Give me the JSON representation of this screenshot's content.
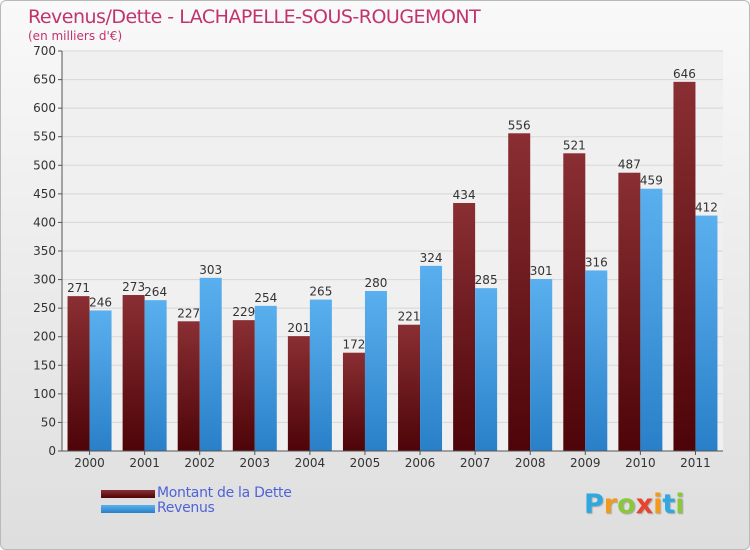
{
  "chart_data": {
    "type": "bar",
    "title": "Revenus/Dette - LACHAPELLE-SOUS-ROUGEMONT",
    "subtitle": "(en milliers d'€)",
    "categories": [
      "2000",
      "2001",
      "2002",
      "2003",
      "2004",
      "2005",
      "2006",
      "2007",
      "2008",
      "2009",
      "2010",
      "2011"
    ],
    "series": [
      {
        "name": "Montant de la Dette",
        "color": "#7a1a1f",
        "values": [
          271,
          273,
          227,
          229,
          201,
          172,
          221,
          434,
          556,
          521,
          487,
          646
        ]
      },
      {
        "name": "Revenus",
        "color": "#4aa3e6",
        "values": [
          246,
          264,
          303,
          254,
          265,
          280,
          324,
          285,
          301,
          316,
          459,
          412
        ]
      }
    ],
    "yticks": [
      0,
      50,
      100,
      150,
      200,
      250,
      300,
      350,
      400,
      450,
      500,
      550,
      600,
      650,
      700
    ],
    "ylim": [
      0,
      700
    ],
    "grid": true,
    "legend": "bottom-left"
  },
  "logo": {
    "letters": [
      "P",
      "r",
      "o",
      "x",
      "i",
      "t",
      "i"
    ],
    "colors": [
      "#2fa8e0",
      "#f19a1c",
      "#8cc63f",
      "#e8432e",
      "#f19a1c",
      "#2fa8e0",
      "#8cc63f"
    ]
  }
}
